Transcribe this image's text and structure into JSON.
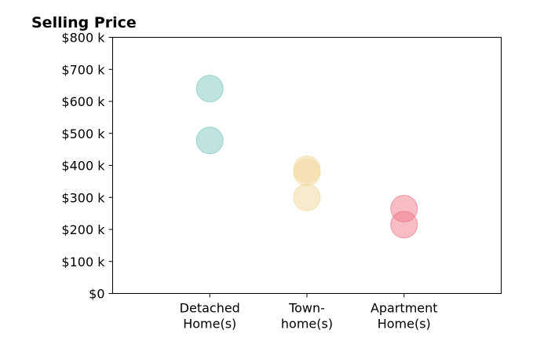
{
  "chart_data": {
    "type": "scatter",
    "title": "Selling Price",
    "xlabel": "",
    "ylabel": "",
    "categories": [
      [
        "Detached",
        "Home(s)"
      ],
      [
        "Town-",
        "home(s)"
      ],
      [
        "Apartment",
        "Home(s)"
      ]
    ],
    "ylim": [
      0,
      800
    ],
    "xlim": [
      0,
      4
    ],
    "y_ticks": [
      {
        "value": 0,
        "label": "$0"
      },
      {
        "value": 100,
        "label": "$100 k"
      },
      {
        "value": 200,
        "label": "$200 k"
      },
      {
        "value": 300,
        "label": "$300 k"
      },
      {
        "value": 400,
        "label": "$400 k"
      },
      {
        "value": 500,
        "label": "$500 k"
      },
      {
        "value": 600,
        "label": "$600 k"
      },
      {
        "value": 700,
        "label": "$700 k"
      },
      {
        "value": 800,
        "label": "$800 k"
      }
    ],
    "series": [
      {
        "category_index": 0,
        "color": "#7fc8c0",
        "values": [
          640,
          478
        ]
      },
      {
        "category_index": 1,
        "color": "#f2d89c",
        "values": [
          388,
          378,
          300
        ]
      },
      {
        "category_index": 2,
        "color": "#f07a89",
        "values": [
          265,
          215
        ]
      }
    ],
    "marker_opacity": 0.5,
    "grid": false,
    "legend": "none"
  }
}
